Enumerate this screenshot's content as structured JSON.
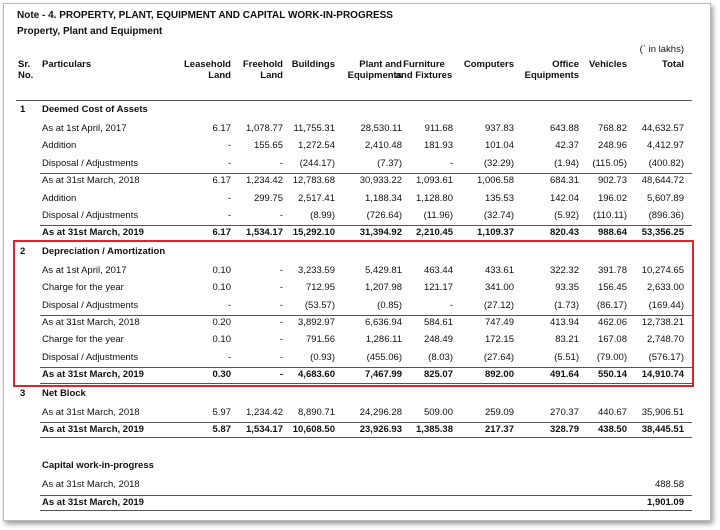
{
  "header": {
    "title": "Note - 4. PROPERTY, PLANT, EQUIPMENT AND CAPITAL WORK-IN-PROGRESS",
    "subtitle": "Property, Plant and Equipment",
    "unit": "(` in lakhs)"
  },
  "table": {
    "columns": [
      "Sr. No.",
      "Particulars",
      "Leasehold Land",
      "Freehold Land",
      "Buildings",
      "Plant and Equipments",
      "Furniture and Fixtures",
      "Computers",
      "Office Equipments",
      "Vehicles",
      "Total"
    ],
    "sections": [
      {
        "no": "1",
        "title": "Deemed Cost of Assets",
        "rows": [
          {
            "label": "As at 1st April, 2017",
            "values": [
              "6.17",
              "1,078.77",
              "11,755.31",
              "28,530.11",
              "911.68",
              "937.83",
              "643.88",
              "768.82",
              "44,632.57"
            ]
          },
          {
            "label": "Addition",
            "values": [
              "-",
              "155.65",
              "1,272.54",
              "2,410.48",
              "181.93",
              "101.04",
              "42.37",
              "248.96",
              "4,412.97"
            ]
          },
          {
            "label": "Disposal / Adjustments",
            "values": [
              "-",
              "-",
              "(244.17)",
              "(7.37)",
              "-",
              "(32.29)",
              "(1.94)",
              "(115.05)",
              "(400.82)"
            ]
          },
          {
            "label": "As at 31st March, 2018",
            "rule_above": true,
            "values": [
              "6.17",
              "1,234.42",
              "12,783.68",
              "30,933.22",
              "1,093.61",
              "1,006.58",
              "684.31",
              "902.73",
              "48,644.72"
            ]
          },
          {
            "label": "Addition",
            "values": [
              "-",
              "299.75",
              "2,517.41",
              "1,188.34",
              "1,128.80",
              "135.53",
              "142.04",
              "196.02",
              "5,607.89"
            ]
          },
          {
            "label": "Disposal / Adjustments",
            "values": [
              "-",
              "-",
              "(8.99)",
              "(726.64)",
              "(11.96)",
              "(32.74)",
              "(5.92)",
              "(110.11)",
              "(896.36)"
            ]
          },
          {
            "label": "As at 31st March, 2019",
            "bold": true,
            "rule_above": true,
            "values": [
              "6.17",
              "1,534.17",
              "15,292.10",
              "31,394.92",
              "2,210.45",
              "1,109.37",
              "820.43",
              "988.64",
              "53,356.25"
            ]
          }
        ]
      },
      {
        "no": "2",
        "title": "Depreciation / Amortization",
        "highlight": true,
        "rows": [
          {
            "label": "As at 1st April, 2017",
            "values": [
              "0.10",
              "-",
              "3,233.59",
              "5,429.81",
              "463.44",
              "433.61",
              "322.32",
              "391.78",
              "10,274.65"
            ]
          },
          {
            "label": "Charge for the year",
            "values": [
              "0.10",
              "-",
              "712.95",
              "1,207.98",
              "121.17",
              "341.00",
              "93.35",
              "156.45",
              "2,633.00"
            ]
          },
          {
            "label": "Disposal / Adjustments",
            "values": [
              "-",
              "-",
              "(53.57)",
              "(0.85)",
              "-",
              "(27.12)",
              "(1.73)",
              "(86.17)",
              "(169.44)"
            ]
          },
          {
            "label": "As at 31st March, 2018",
            "rule_above": true,
            "values": [
              "0.20",
              "-",
              "3,892.97",
              "6,636.94",
              "584.61",
              "747.49",
              "413.94",
              "462.06",
              "12,738.21"
            ]
          },
          {
            "label": "Charge for the year",
            "values": [
              "0.10",
              "-",
              "791.56",
              "1,286.11",
              "248.49",
              "172.15",
              "83.21",
              "167.08",
              "2,748.70"
            ]
          },
          {
            "label": "Disposal / Adjustments",
            "values": [
              "-",
              "-",
              "(0.93)",
              "(455.06)",
              "(8.03)",
              "(27.64)",
              "(5.51)",
              "(79.00)",
              "(576.17)"
            ]
          },
          {
            "label": "As at 31st March, 2019",
            "bold": true,
            "rule_above": true,
            "values": [
              "0.30",
              "-",
              "4,683.60",
              "7,467.99",
              "825.07",
              "892.00",
              "491.64",
              "550.14",
              "14,910.74"
            ]
          }
        ]
      },
      {
        "no": "3",
        "title": "Net Block",
        "rows": [
          {
            "label": "As at 31st March, 2018",
            "values": [
              "5.97",
              "1,234.42",
              "8,890.71",
              "24,296.28",
              "509.00",
              "259.09",
              "270.37",
              "440.67",
              "35,906.51"
            ]
          },
          {
            "label": "As at 31st March, 2019",
            "bold": true,
            "rule_above": true,
            "values": [
              "5.87",
              "1,534.17",
              "10,608.50",
              "23,926.93",
              "1,385.38",
              "217.37",
              "328.79",
              "438.50",
              "38,445.51"
            ]
          }
        ]
      },
      {
        "title": "Capital work-in-progress",
        "rows": [
          {
            "label": "As at 31st March, 2018",
            "values": [
              null,
              null,
              null,
              null,
              null,
              null,
              null,
              null,
              "488.58"
            ]
          },
          {
            "label": "As at 31st March, 2019",
            "bold": true,
            "rule_above": true,
            "values": [
              null,
              null,
              null,
              null,
              null,
              null,
              null,
              null,
              "1,901.09"
            ]
          }
        ]
      }
    ]
  }
}
